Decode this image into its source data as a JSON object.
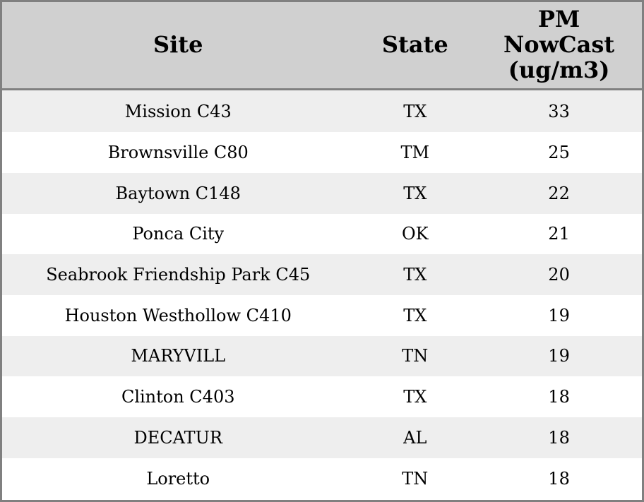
{
  "table": {
    "columns": [
      {
        "key": "site",
        "label": "Site"
      },
      {
        "key": "state",
        "label": "State"
      },
      {
        "key": "pm_nowcast",
        "label": "PM\nNowCast\n(ug/m3)"
      }
    ],
    "rows": [
      {
        "site": "Mission C43",
        "state": "TX",
        "pm_nowcast": "33"
      },
      {
        "site": "Brownsville C80",
        "state": "TM",
        "pm_nowcast": "25"
      },
      {
        "site": "Baytown C148",
        "state": "TX",
        "pm_nowcast": "22"
      },
      {
        "site": "Ponca City",
        "state": "OK",
        "pm_nowcast": "21"
      },
      {
        "site": "Seabrook Friendship Park C45",
        "state": "TX",
        "pm_nowcast": "20"
      },
      {
        "site": "Houston Westhollow C410",
        "state": "TX",
        "pm_nowcast": "19"
      },
      {
        "site": "MARYVILL",
        "state": "TN",
        "pm_nowcast": "19"
      },
      {
        "site": "Clinton C403",
        "state": "TX",
        "pm_nowcast": "18"
      },
      {
        "site": "DECATUR",
        "state": "AL",
        "pm_nowcast": "18"
      },
      {
        "site": "Loretto",
        "state": "TN",
        "pm_nowcast": "18"
      }
    ]
  },
  "colors": {
    "border": "#808080",
    "header_bg": "#d0d0d0",
    "row_alt_bg": "#eeeeee",
    "row_bg": "#ffffff",
    "text": "#000000"
  }
}
